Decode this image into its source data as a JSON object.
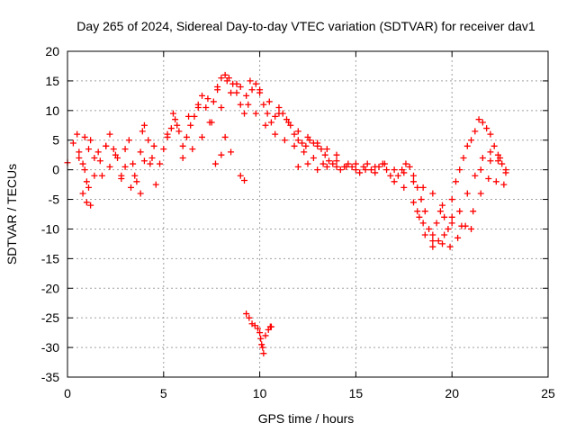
{
  "chart_data": {
    "type": "scatter",
    "title": "Day 265 of 2024, Sidereal Day-to-day VTEC variation (SDTVAR) for receiver dav1",
    "xlabel": "GPS time / hours",
    "ylabel": "SDTVAR / TECUs",
    "xlim": [
      0,
      25
    ],
    "ylim": [
      -35,
      20
    ],
    "xticks": [
      0,
      5,
      10,
      15,
      20,
      25
    ],
    "yticks": [
      20,
      15,
      10,
      5,
      0,
      -5,
      -10,
      -15,
      -20,
      -25,
      -30,
      -35
    ],
    "grid": true,
    "marker": "+",
    "series": [
      {
        "name": "SDTVAR",
        "color": "#ff0000",
        "x": [
          0.0,
          0.3,
          0.5,
          0.6,
          0.8,
          0.9,
          1.0,
          1.1,
          1.2,
          1.4,
          1.6,
          1.8,
          2.0,
          2.2,
          2.4,
          2.6,
          2.8,
          3.0,
          3.2,
          3.4,
          3.6,
          3.8,
          3.9,
          4.0,
          4.2,
          4.4,
          4.6,
          4.8,
          5.0,
          5.2,
          5.4,
          5.5,
          5.6,
          5.8,
          6.0,
          6.2,
          6.4,
          6.6,
          6.8,
          7.0,
          7.2,
          7.4,
          7.6,
          7.8,
          8.0,
          8.2,
          8.4,
          8.6,
          8.8,
          9.0,
          9.2,
          9.4,
          9.6,
          9.8,
          10.0,
          10.2,
          10.4,
          10.6,
          10.8,
          11.0,
          11.2,
          11.4,
          11.6,
          11.8,
          12.0,
          12.2,
          12.4,
          12.6,
          12.8,
          13.0,
          13.2,
          13.4,
          13.6,
          13.8,
          14.0,
          14.2,
          14.4,
          14.6,
          14.8,
          15.0,
          15.2,
          15.4,
          15.6,
          15.8,
          16.0,
          16.2,
          16.4,
          16.6,
          16.8,
          17.0,
          17.2,
          17.4,
          17.6,
          17.8,
          18.0,
          18.2,
          18.4,
          18.6,
          18.8,
          19.0,
          19.2,
          19.4,
          19.6,
          19.8,
          20.0,
          20.2,
          20.4,
          20.6,
          20.8,
          21.0,
          21.2,
          21.4,
          21.6,
          21.8,
          22.0,
          22.2,
          22.4,
          22.6,
          22.8,
          0.6,
          0.9,
          1.1,
          1.4,
          1.7,
          2.0,
          2.5,
          3.0,
          3.5,
          4.0,
          4.5,
          5.2,
          5.7,
          6.3,
          6.8,
          7.3,
          7.8,
          8.3,
          8.8,
          9.3,
          9.8,
          10.3,
          10.8,
          11.3,
          11.8,
          12.3,
          12.8,
          13.3,
          0.8,
          1.0,
          1.2,
          2.2,
          2.8,
          3.3,
          3.8,
          4.3,
          6.0,
          6.5,
          7.0,
          7.5,
          8.0,
          8.5,
          9.0,
          9.5,
          10.0,
          10.5,
          11.0,
          11.5,
          12.0,
          12.5,
          13.0,
          13.5,
          14.0,
          7.7,
          8.0,
          8.2,
          8.5,
          9.0,
          9.2,
          9.3,
          9.45,
          9.6,
          9.75,
          9.9,
          10.0,
          10.05,
          10.1,
          10.15,
          10.2,
          10.3,
          10.45,
          10.55,
          10.6,
          12.0,
          12.5,
          13.0,
          13.5,
          14.0,
          14.5,
          15.0,
          15.5,
          16.0,
          16.5,
          17.0,
          17.5,
          18.0,
          18.5,
          19.0,
          19.5,
          20.0,
          20.5,
          21.0,
          21.5,
          22.0,
          22.5,
          17.5,
          18.0,
          18.3,
          18.6,
          19.0,
          19.3,
          19.6,
          20.0,
          20.4,
          20.8,
          21.2,
          21.6,
          22.0,
          22.4,
          22.8,
          18.2,
          18.5,
          19.0,
          19.5,
          19.9,
          20.3,
          20.7,
          21.1,
          21.5,
          21.9,
          22.3,
          22.7
        ],
        "y": [
          1.2,
          4.5,
          6.0,
          3.0,
          1.0,
          5.5,
          -2.0,
          3.5,
          5.0,
          2.0,
          3.0,
          -1.0,
          4.0,
          6.0,
          3.5,
          2.0,
          -1.5,
          3.5,
          5.0,
          1.0,
          -2.0,
          3.0,
          6.5,
          7.5,
          5.0,
          2.0,
          -2.5,
          1.0,
          3.5,
          5.5,
          7.0,
          9.5,
          8.5,
          6.5,
          4.0,
          5.5,
          7.5,
          9.0,
          11.0,
          12.5,
          10.5,
          8.0,
          11.5,
          14.0,
          15.5,
          16.0,
          15.5,
          14.5,
          13.0,
          11.0,
          9.5,
          11.0,
          13.5,
          14.5,
          13.0,
          11.0,
          9.5,
          8.0,
          9.0,
          10.5,
          9.5,
          8.5,
          7.5,
          6.0,
          5.0,
          4.5,
          4.0,
          5.0,
          4.5,
          4.0,
          3.5,
          2.5,
          1.5,
          1.0,
          0.5,
          0.0,
          0.5,
          1.0,
          0.5,
          0.0,
          -0.5,
          0.5,
          1.0,
          0.0,
          -0.5,
          0.5,
          1.0,
          0.0,
          -1.0,
          -2.0,
          -1.0,
          0.0,
          1.0,
          0.5,
          -2.0,
          -3.0,
          -5.0,
          -7.0,
          -10.0,
          -12.0,
          -9.0,
          -7.0,
          -8.0,
          -10.0,
          -5.0,
          -2.0,
          0.0,
          2.0,
          4.0,
          5.0,
          6.5,
          8.5,
          8.0,
          7.0,
          6.0,
          4.0,
          2.5,
          1.0,
          0.0,
          2.0,
          0.0,
          -3.0,
          -1.0,
          1.5,
          4.0,
          2.5,
          0.5,
          -1.0,
          1.5,
          4.0,
          6.0,
          7.5,
          9.0,
          10.5,
          12.0,
          13.5,
          15.0,
          14.5,
          12.5,
          9.5,
          7.5,
          6.0,
          5.0,
          4.0,
          3.0,
          2.0,
          1.0,
          -4.0,
          -5.5,
          -6.0,
          0.5,
          -1.0,
          -3.0,
          -4.0,
          1.0,
          2.0,
          3.5,
          5.5,
          8.0,
          10.5,
          13.0,
          14.0,
          15.0,
          13.5,
          11.5,
          9.5,
          8.0,
          6.5,
          5.5,
          4.5,
          3.5,
          2.5,
          1.0,
          2.5,
          5.5,
          3.0,
          -1.0,
          -1.8,
          -24.3,
          -25.0,
          -26.0,
          -26.3,
          -26.8,
          -27.5,
          -28.5,
          -29.5,
          -30.0,
          -31.0,
          -28.0,
          -27.0,
          -26.5,
          -26.5,
          0.5,
          1.0,
          0.0,
          0.5,
          1.5,
          0.5,
          1.0,
          0.0,
          0.5,
          1.0,
          0.0,
          -0.5,
          -1.0,
          -3.0,
          -4.0,
          -6.0,
          -8.0,
          -9.5,
          -10.0,
          0.0,
          1.5,
          2.0,
          -3.0,
          -5.5,
          -8.0,
          -11.0,
          -13.0,
          -12.0,
          -11.0,
          -9.0,
          -7.0,
          -4.0,
          -1.0,
          2.0,
          3.0,
          1.5,
          -0.5,
          -7.0,
          -9.0,
          -11.0,
          -12.5,
          -13.0,
          -11.5,
          -9.5,
          -7.0,
          -4.0,
          -1.5,
          -2.0,
          -2.5
        ]
      }
    ]
  }
}
